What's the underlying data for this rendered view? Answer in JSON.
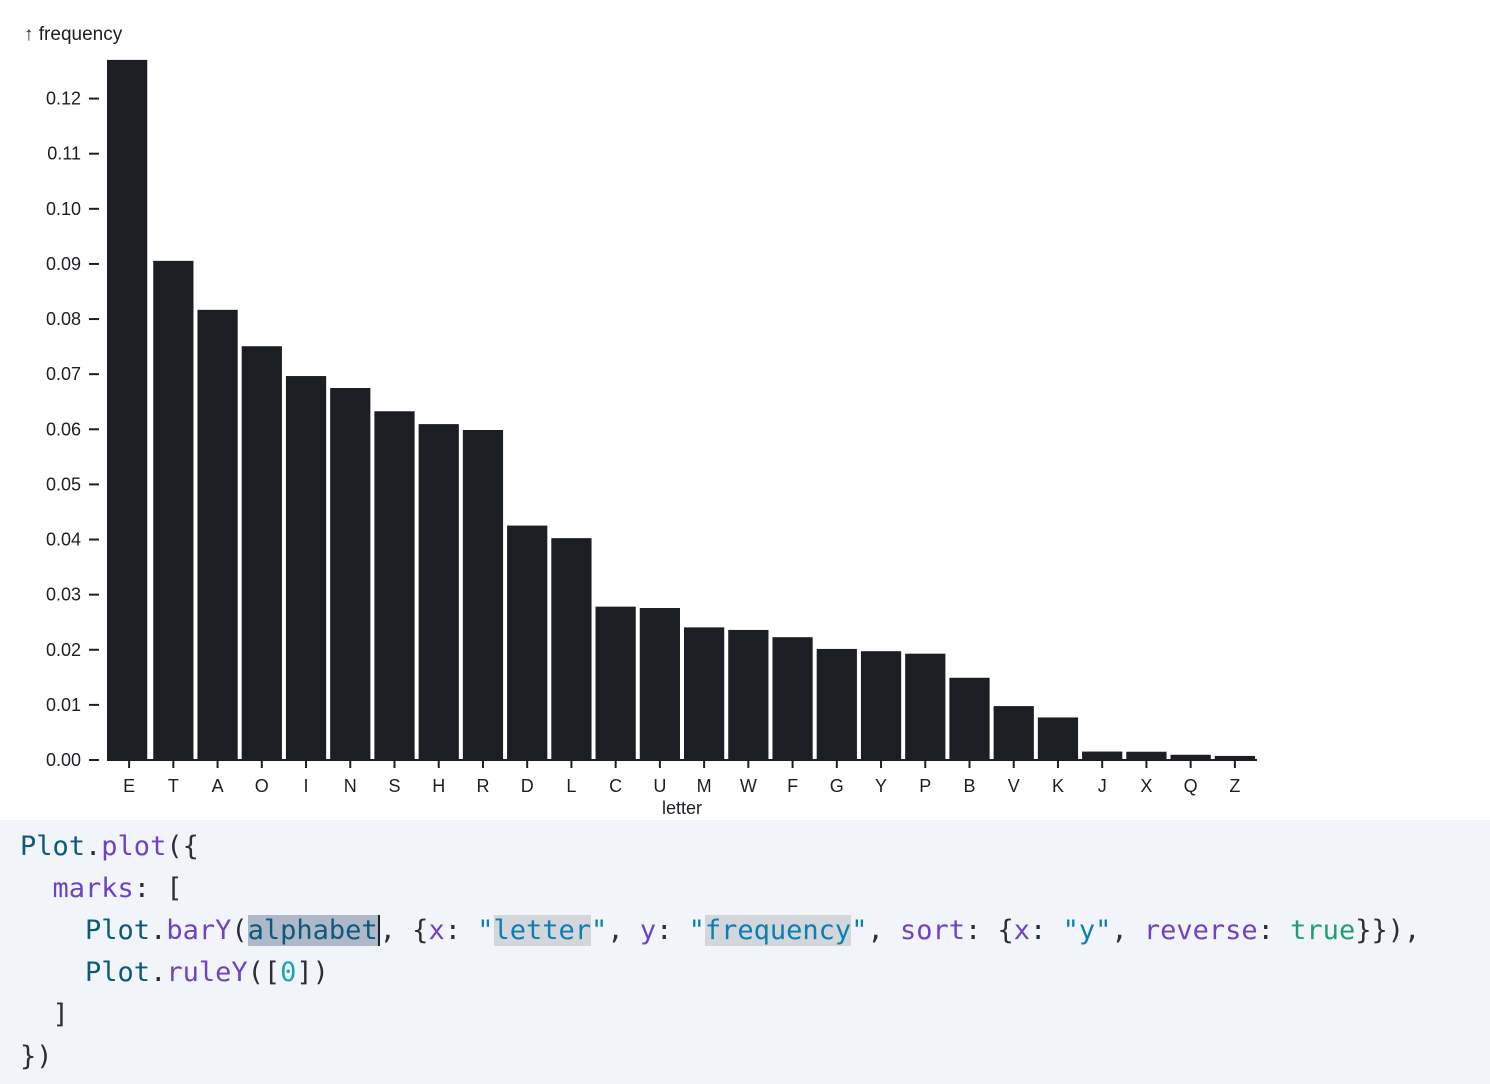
{
  "chart_data": {
    "type": "bar",
    "ylabel": "↑ frequency",
    "xlabel": "letter",
    "categories": [
      "E",
      "T",
      "A",
      "O",
      "I",
      "N",
      "S",
      "H",
      "R",
      "D",
      "L",
      "C",
      "U",
      "M",
      "W",
      "F",
      "G",
      "Y",
      "P",
      "B",
      "V",
      "K",
      "J",
      "X",
      "Q",
      "Z"
    ],
    "values": [
      0.12702,
      0.09056,
      0.08167,
      0.07507,
      0.06966,
      0.06749,
      0.06327,
      0.06094,
      0.05987,
      0.04253,
      0.04025,
      0.02782,
      0.02758,
      0.02406,
      0.0236,
      0.02228,
      0.02015,
      0.01974,
      0.01929,
      0.01492,
      0.00978,
      0.00772,
      0.00153,
      0.0015,
      0.00095,
      0.00074
    ],
    "yticks": [
      "0.00",
      "0.01",
      "0.02",
      "0.03",
      "0.04",
      "0.05",
      "0.06",
      "0.07",
      "0.08",
      "0.09",
      "0.10",
      "0.11",
      "0.12"
    ],
    "ylim": [
      0,
      0.127
    ],
    "grid": false,
    "bar_color": "#1b1e23"
  },
  "code": {
    "line1": {
      "obj": "Plot",
      "dot": ".",
      "fn": "plot",
      "rest": "({"
    },
    "line2": {
      "indent": "  ",
      "prop": "marks",
      "rest": ": ["
    },
    "line3": {
      "indent": "    ",
      "obj": "Plot",
      "dot": ".",
      "fn": "barY",
      "open": "(",
      "arg": "alphabet",
      "comma1": ", {",
      "k1": "x",
      "colon1": ": ",
      "q1": "\"",
      "s1": "letter",
      "q1b": "\"",
      "comma2": ", ",
      "k2": "y",
      "colon2": ": ",
      "q2": "\"",
      "s2": "frequency",
      "q2b": "\"",
      "comma3": ", ",
      "k3": "sort",
      "colon3": ": {",
      "k4": "x",
      "colon4": ": ",
      "s3": "\"y\"",
      "comma4": ", ",
      "k5": "reverse",
      "colon5": ": ",
      "b1": "true",
      "close": "}}),"
    },
    "line4": {
      "indent": "    ",
      "obj": "Plot",
      "dot": ".",
      "fn": "ruleY",
      "open": "([",
      "num": "0",
      "close": "])"
    },
    "line5": {
      "text": "  ]"
    },
    "line6": {
      "text": "})"
    }
  },
  "colors": {
    "code_background": "#f1f5f9",
    "selection": "#aeb8c8",
    "highlight": "#d3d6da"
  }
}
